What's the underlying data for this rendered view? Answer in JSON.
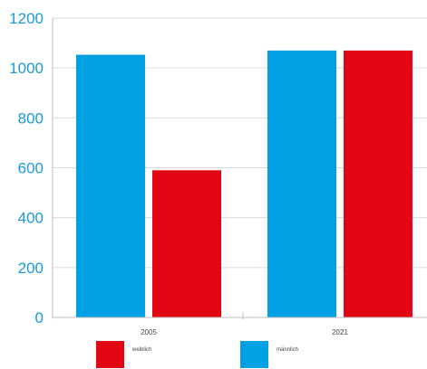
{
  "chart_data": {
    "type": "bar",
    "title": "",
    "xlabel": "",
    "ylabel": "",
    "categories": [
      "2005",
      "2021"
    ],
    "series": [
      {
        "name": "männlich",
        "color": "#00a0e3",
        "values": [
          1053,
          1070
        ]
      },
      {
        "name": "weiblich",
        "color": "#e30613",
        "values": [
          590,
          1070
        ]
      }
    ],
    "ylim": [
      0,
      1200
    ],
    "yticks": [
      0,
      200,
      400,
      600,
      800,
      1000,
      1200
    ],
    "grid": true,
    "legend_position": "bottom",
    "legend_order": [
      1,
      0
    ]
  }
}
